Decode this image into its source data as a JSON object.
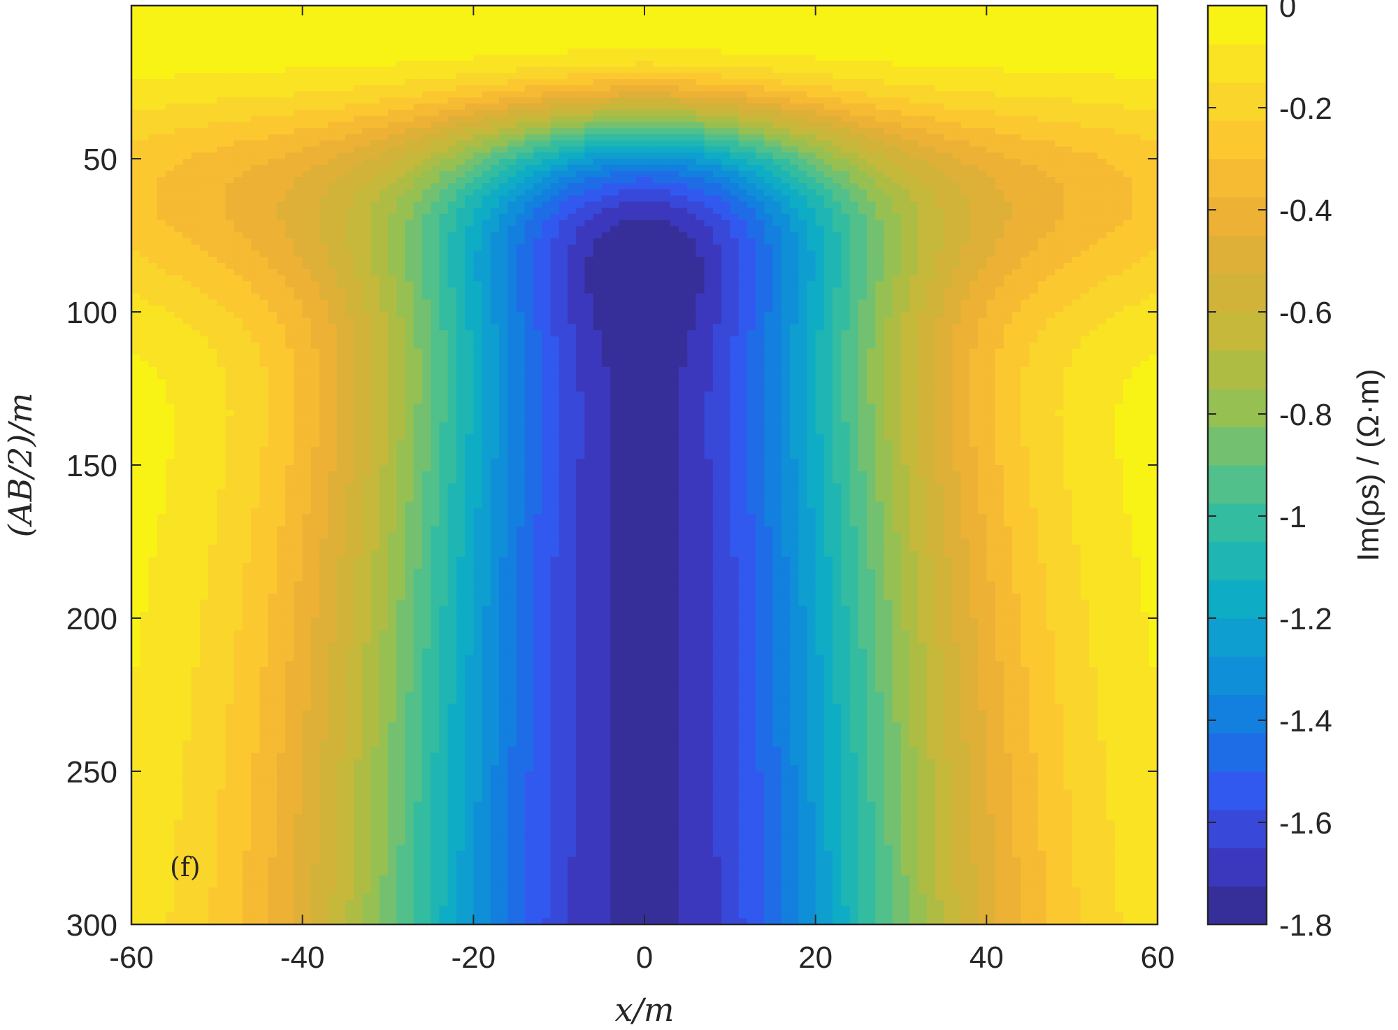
{
  "chart_data": {
    "type": "heatmap",
    "subtype": "filled-contour",
    "panel_label": "(f)",
    "xlabel": "x/m",
    "ylabel": "(AB/2)/m",
    "colorbar_label": "Im(ρs) / (Ω·m)",
    "xlim": [
      -60,
      60
    ],
    "ylim": [
      0,
      300
    ],
    "y_reversed": true,
    "x_ticks": [
      -60,
      -40,
      -20,
      0,
      20,
      40,
      60
    ],
    "y_ticks": [
      50,
      100,
      150,
      200,
      250,
      300
    ],
    "clim": [
      -1.8,
      0
    ],
    "colorbar_ticks": [
      0,
      -0.2,
      -0.4,
      -0.6,
      -0.8,
      -1,
      -1.2,
      -1.4,
      -1.6,
      -1.8
    ],
    "contour_levels": 24,
    "colormap": "parula",
    "field_description_values": {
      "min_value": -1.73,
      "min_location": {
        "x": 0,
        "AB2": 300
      },
      "surface_value": 0
    },
    "colormap_stops": [
      "#352a87",
      "#3d3ac6",
      "#3258f0",
      "#1479e0",
      "#0e95d5",
      "#0eaec4",
      "#2cbba5",
      "#61c27f",
      "#9dc04c",
      "#c5b83a",
      "#d9b038",
      "#f2b134",
      "#fcc930",
      "#f9e026",
      "#f9fb0e"
    ]
  }
}
